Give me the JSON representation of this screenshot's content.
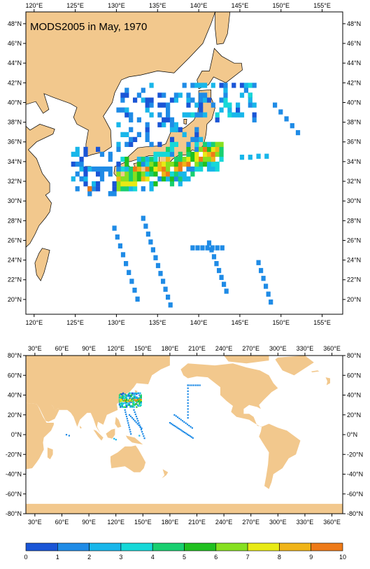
{
  "top_map": {
    "title": "MODS2005 in May, 1970",
    "x_ticks": [
      "120°E",
      "125°E",
      "130°E",
      "135°E",
      "140°E",
      "145°E",
      "150°E",
      "155°E"
    ],
    "y_ticks": [
      "48°N",
      "46°N",
      "44°N",
      "42°N",
      "40°N",
      "38°N",
      "36°N",
      "34°N",
      "32°N",
      "30°N",
      "28°N",
      "26°N",
      "24°N",
      "22°N",
      "20°N"
    ],
    "lon_range": [
      119,
      157.5
    ],
    "lat_range": [
      18.5,
      49.2
    ]
  },
  "bottom_map": {
    "x_ticks": [
      "30°E",
      "60°E",
      "90°E",
      "120°E",
      "150°E",
      "180°E",
      "210°E",
      "240°E",
      "270°E",
      "300°E",
      "330°E",
      "360°E"
    ],
    "y_ticks": [
      "80°N",
      "60°N",
      "40°N",
      "20°N",
      "0°N",
      "-20°N",
      "-40°N",
      "-60°N",
      "-80°N"
    ],
    "lon_range": [
      20,
      372
    ],
    "lat_range": [
      -80,
      80
    ]
  },
  "colorbar": {
    "labels": [
      "0",
      "1",
      "2",
      "3",
      "4",
      "5",
      "6",
      "7",
      "8",
      "9",
      "10"
    ],
    "colors": [
      "#1a55d6",
      "#1f8be6",
      "#18b6ea",
      "#16d8d8",
      "#18cf70",
      "#20c020",
      "#86e020",
      "#e8ea14",
      "#f0b418",
      "#ee7a18",
      "#e43414"
    ]
  },
  "colors": {
    "land": "#f2c88d",
    "ocean": "#ffffff"
  }
}
